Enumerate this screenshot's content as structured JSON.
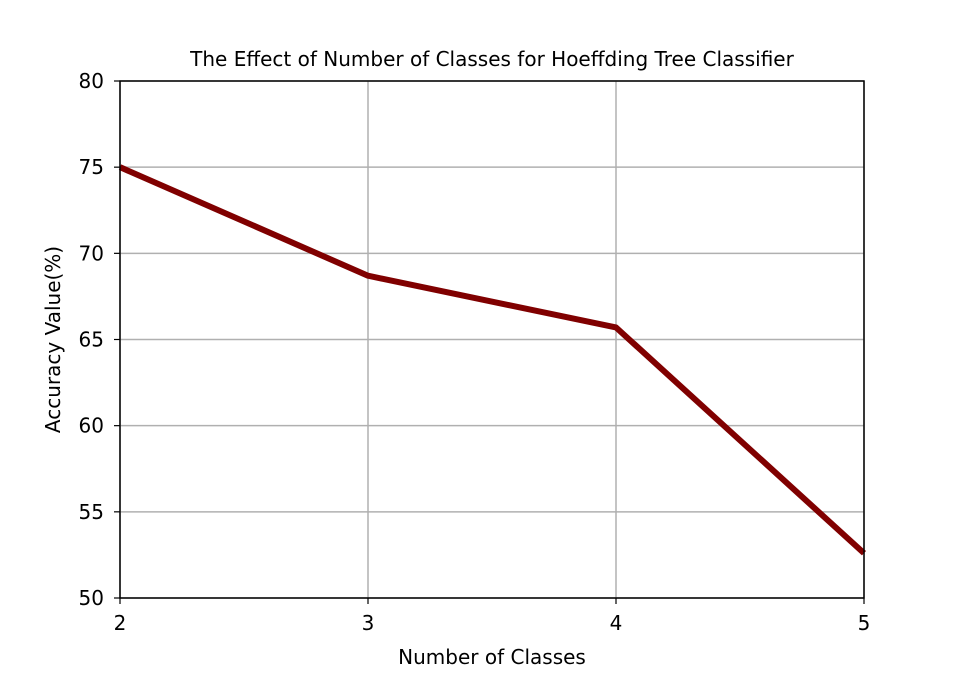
{
  "chart_data": {
    "type": "line",
    "title": "The Effect of Number of Classes for Hoeffding Tree Classifier",
    "xlabel": "Number of Classes",
    "ylabel": "Accuracy Value(%)",
    "x": [
      2,
      3,
      4,
      5
    ],
    "x_ticks": [
      "2",
      "3",
      "4",
      "5"
    ],
    "y_ticks": [
      "50",
      "55",
      "60",
      "65",
      "70",
      "75",
      "80"
    ],
    "xlim": [
      2,
      5
    ],
    "ylim": [
      50,
      80
    ],
    "grid": true,
    "legend": "none",
    "series": [
      {
        "values": [
          75.0,
          68.7,
          65.7,
          52.6
        ],
        "color": "#800000"
      }
    ]
  }
}
